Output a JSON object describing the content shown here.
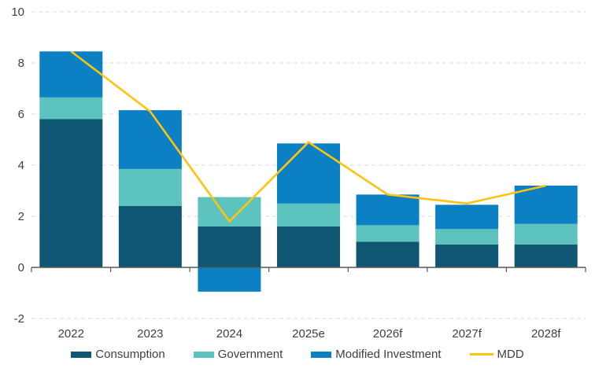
{
  "chart_data": {
    "type": "combo_stacked_bar_line",
    "title": "",
    "xlabel": "",
    "ylabel": "",
    "categories": [
      "2022",
      "2023",
      "2024",
      "2025e",
      "2026f",
      "2027f",
      "2028f"
    ],
    "bar_series": [
      {
        "name": "Consumption",
        "color": "#0f5673",
        "values": [
          5.8,
          2.4,
          1.6,
          1.6,
          1.0,
          0.9,
          0.9
        ]
      },
      {
        "name": "Government",
        "color": "#5cc3bf",
        "values": [
          0.85,
          1.45,
          1.15,
          0.9,
          0.65,
          0.6,
          0.8
        ]
      },
      {
        "name": "Modified Investment",
        "color": "#0b81c4",
        "values": [
          1.8,
          2.3,
          -0.95,
          2.35,
          1.2,
          0.95,
          1.5
        ]
      }
    ],
    "line_series": {
      "name": "MDD",
      "color": "#ffc20e",
      "values": [
        8.45,
        6.1,
        1.8,
        4.9,
        2.85,
        2.5,
        3.2
      ]
    },
    "bar_totals": [
      8.45,
      6.15,
      1.8,
      4.85,
      2.85,
      2.45,
      3.2
    ],
    "ylim": [
      -2,
      10
    ],
    "yticks": [
      -2,
      0,
      2,
      4,
      6,
      8,
      10
    ],
    "grid": "horizontal-dashed",
    "legend_position": "bottom"
  },
  "colors": {
    "gridline": "#d9d9d9",
    "axis": "#595959",
    "label_text": "#404040"
  }
}
